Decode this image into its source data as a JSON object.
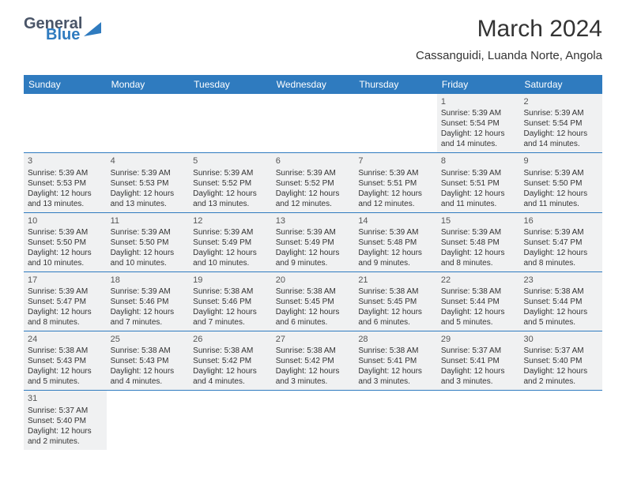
{
  "logo": {
    "text_general": "General",
    "text_blue": "Blue",
    "general_color": "#4a5568",
    "blue_color": "#2f7bbf"
  },
  "title": "March 2024",
  "subtitle": "Cassanguidi, Luanda Norte, Angola",
  "header_bg": "#2f7bbf",
  "header_text_color": "#ffffff",
  "cell_bg": "#f0f1f2",
  "border_color": "#2f7bbf",
  "weekdays": [
    "Sunday",
    "Monday",
    "Tuesday",
    "Wednesday",
    "Thursday",
    "Friday",
    "Saturday"
  ],
  "weeks": [
    [
      null,
      null,
      null,
      null,
      null,
      {
        "num": "1",
        "sunrise": "Sunrise: 5:39 AM",
        "sunset": "Sunset: 5:54 PM",
        "daylight1": "Daylight: 12 hours",
        "daylight2": "and 14 minutes."
      },
      {
        "num": "2",
        "sunrise": "Sunrise: 5:39 AM",
        "sunset": "Sunset: 5:54 PM",
        "daylight1": "Daylight: 12 hours",
        "daylight2": "and 14 minutes."
      }
    ],
    [
      {
        "num": "3",
        "sunrise": "Sunrise: 5:39 AM",
        "sunset": "Sunset: 5:53 PM",
        "daylight1": "Daylight: 12 hours",
        "daylight2": "and 13 minutes."
      },
      {
        "num": "4",
        "sunrise": "Sunrise: 5:39 AM",
        "sunset": "Sunset: 5:53 PM",
        "daylight1": "Daylight: 12 hours",
        "daylight2": "and 13 minutes."
      },
      {
        "num": "5",
        "sunrise": "Sunrise: 5:39 AM",
        "sunset": "Sunset: 5:52 PM",
        "daylight1": "Daylight: 12 hours",
        "daylight2": "and 13 minutes."
      },
      {
        "num": "6",
        "sunrise": "Sunrise: 5:39 AM",
        "sunset": "Sunset: 5:52 PM",
        "daylight1": "Daylight: 12 hours",
        "daylight2": "and 12 minutes."
      },
      {
        "num": "7",
        "sunrise": "Sunrise: 5:39 AM",
        "sunset": "Sunset: 5:51 PM",
        "daylight1": "Daylight: 12 hours",
        "daylight2": "and 12 minutes."
      },
      {
        "num": "8",
        "sunrise": "Sunrise: 5:39 AM",
        "sunset": "Sunset: 5:51 PM",
        "daylight1": "Daylight: 12 hours",
        "daylight2": "and 11 minutes."
      },
      {
        "num": "9",
        "sunrise": "Sunrise: 5:39 AM",
        "sunset": "Sunset: 5:50 PM",
        "daylight1": "Daylight: 12 hours",
        "daylight2": "and 11 minutes."
      }
    ],
    [
      {
        "num": "10",
        "sunrise": "Sunrise: 5:39 AM",
        "sunset": "Sunset: 5:50 PM",
        "daylight1": "Daylight: 12 hours",
        "daylight2": "and 10 minutes."
      },
      {
        "num": "11",
        "sunrise": "Sunrise: 5:39 AM",
        "sunset": "Sunset: 5:50 PM",
        "daylight1": "Daylight: 12 hours",
        "daylight2": "and 10 minutes."
      },
      {
        "num": "12",
        "sunrise": "Sunrise: 5:39 AM",
        "sunset": "Sunset: 5:49 PM",
        "daylight1": "Daylight: 12 hours",
        "daylight2": "and 10 minutes."
      },
      {
        "num": "13",
        "sunrise": "Sunrise: 5:39 AM",
        "sunset": "Sunset: 5:49 PM",
        "daylight1": "Daylight: 12 hours",
        "daylight2": "and 9 minutes."
      },
      {
        "num": "14",
        "sunrise": "Sunrise: 5:39 AM",
        "sunset": "Sunset: 5:48 PM",
        "daylight1": "Daylight: 12 hours",
        "daylight2": "and 9 minutes."
      },
      {
        "num": "15",
        "sunrise": "Sunrise: 5:39 AM",
        "sunset": "Sunset: 5:48 PM",
        "daylight1": "Daylight: 12 hours",
        "daylight2": "and 8 minutes."
      },
      {
        "num": "16",
        "sunrise": "Sunrise: 5:39 AM",
        "sunset": "Sunset: 5:47 PM",
        "daylight1": "Daylight: 12 hours",
        "daylight2": "and 8 minutes."
      }
    ],
    [
      {
        "num": "17",
        "sunrise": "Sunrise: 5:39 AM",
        "sunset": "Sunset: 5:47 PM",
        "daylight1": "Daylight: 12 hours",
        "daylight2": "and 8 minutes."
      },
      {
        "num": "18",
        "sunrise": "Sunrise: 5:39 AM",
        "sunset": "Sunset: 5:46 PM",
        "daylight1": "Daylight: 12 hours",
        "daylight2": "and 7 minutes."
      },
      {
        "num": "19",
        "sunrise": "Sunrise: 5:38 AM",
        "sunset": "Sunset: 5:46 PM",
        "daylight1": "Daylight: 12 hours",
        "daylight2": "and 7 minutes."
      },
      {
        "num": "20",
        "sunrise": "Sunrise: 5:38 AM",
        "sunset": "Sunset: 5:45 PM",
        "daylight1": "Daylight: 12 hours",
        "daylight2": "and 6 minutes."
      },
      {
        "num": "21",
        "sunrise": "Sunrise: 5:38 AM",
        "sunset": "Sunset: 5:45 PM",
        "daylight1": "Daylight: 12 hours",
        "daylight2": "and 6 minutes."
      },
      {
        "num": "22",
        "sunrise": "Sunrise: 5:38 AM",
        "sunset": "Sunset: 5:44 PM",
        "daylight1": "Daylight: 12 hours",
        "daylight2": "and 5 minutes."
      },
      {
        "num": "23",
        "sunrise": "Sunrise: 5:38 AM",
        "sunset": "Sunset: 5:44 PM",
        "daylight1": "Daylight: 12 hours",
        "daylight2": "and 5 minutes."
      }
    ],
    [
      {
        "num": "24",
        "sunrise": "Sunrise: 5:38 AM",
        "sunset": "Sunset: 5:43 PM",
        "daylight1": "Daylight: 12 hours",
        "daylight2": "and 5 minutes."
      },
      {
        "num": "25",
        "sunrise": "Sunrise: 5:38 AM",
        "sunset": "Sunset: 5:43 PM",
        "daylight1": "Daylight: 12 hours",
        "daylight2": "and 4 minutes."
      },
      {
        "num": "26",
        "sunrise": "Sunrise: 5:38 AM",
        "sunset": "Sunset: 5:42 PM",
        "daylight1": "Daylight: 12 hours",
        "daylight2": "and 4 minutes."
      },
      {
        "num": "27",
        "sunrise": "Sunrise: 5:38 AM",
        "sunset": "Sunset: 5:42 PM",
        "daylight1": "Daylight: 12 hours",
        "daylight2": "and 3 minutes."
      },
      {
        "num": "28",
        "sunrise": "Sunrise: 5:38 AM",
        "sunset": "Sunset: 5:41 PM",
        "daylight1": "Daylight: 12 hours",
        "daylight2": "and 3 minutes."
      },
      {
        "num": "29",
        "sunrise": "Sunrise: 5:37 AM",
        "sunset": "Sunset: 5:41 PM",
        "daylight1": "Daylight: 12 hours",
        "daylight2": "and 3 minutes."
      },
      {
        "num": "30",
        "sunrise": "Sunrise: 5:37 AM",
        "sunset": "Sunset: 5:40 PM",
        "daylight1": "Daylight: 12 hours",
        "daylight2": "and 2 minutes."
      }
    ],
    [
      {
        "num": "31",
        "sunrise": "Sunrise: 5:37 AM",
        "sunset": "Sunset: 5:40 PM",
        "daylight1": "Daylight: 12 hours",
        "daylight2": "and 2 minutes."
      },
      null,
      null,
      null,
      null,
      null,
      null
    ]
  ]
}
